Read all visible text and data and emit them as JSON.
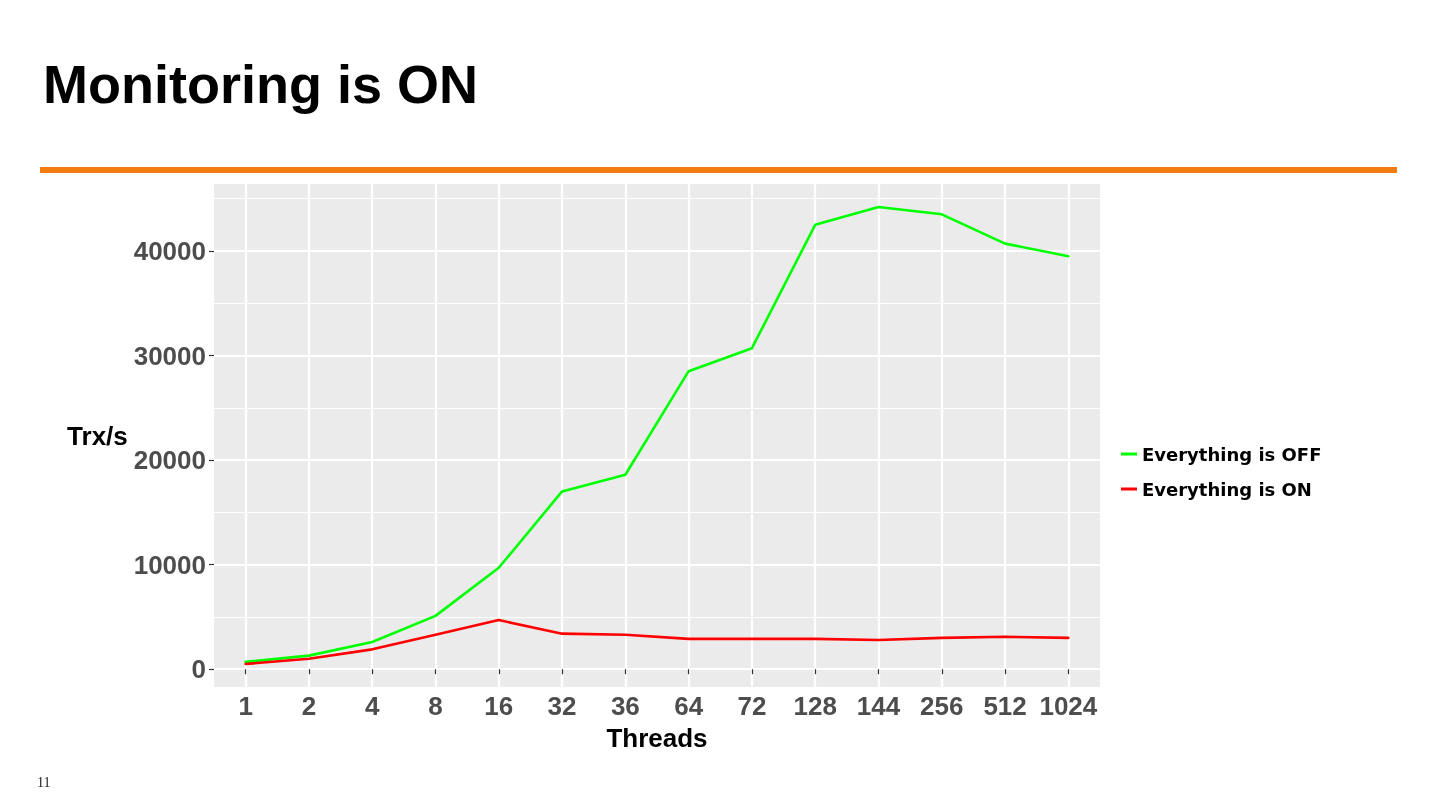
{
  "chart_data": {
    "type": "line",
    "title": "Monitoring is ON",
    "xlabel": "Threads",
    "ylabel": "Trx/s",
    "categories": [
      "1",
      "2",
      "4",
      "8",
      "16",
      "32",
      "36",
      "64",
      "72",
      "128",
      "144",
      "256",
      "512",
      "1024"
    ],
    "series": [
      {
        "name": "Everything is OFF",
        "color": "#00ff00",
        "values": [
          700,
          1300,
          2600,
          5100,
          9700,
          17000,
          18600,
          28500,
          30700,
          42500,
          44200,
          43500,
          40700,
          39500
        ]
      },
      {
        "name": "Everything is ON",
        "color": "#ff0000",
        "values": [
          500,
          1000,
          1900,
          3300,
          4700,
          3400,
          3300,
          2900,
          2900,
          2900,
          2800,
          3000,
          3100,
          3000
        ]
      }
    ],
    "ylim": [
      -1700,
      46400
    ],
    "yticks": [
      0,
      10000,
      20000,
      30000,
      40000
    ],
    "grid": true,
    "legend": "right",
    "marker": "none",
    "line_style": "solid",
    "annotations": [
      "11"
    ]
  }
}
